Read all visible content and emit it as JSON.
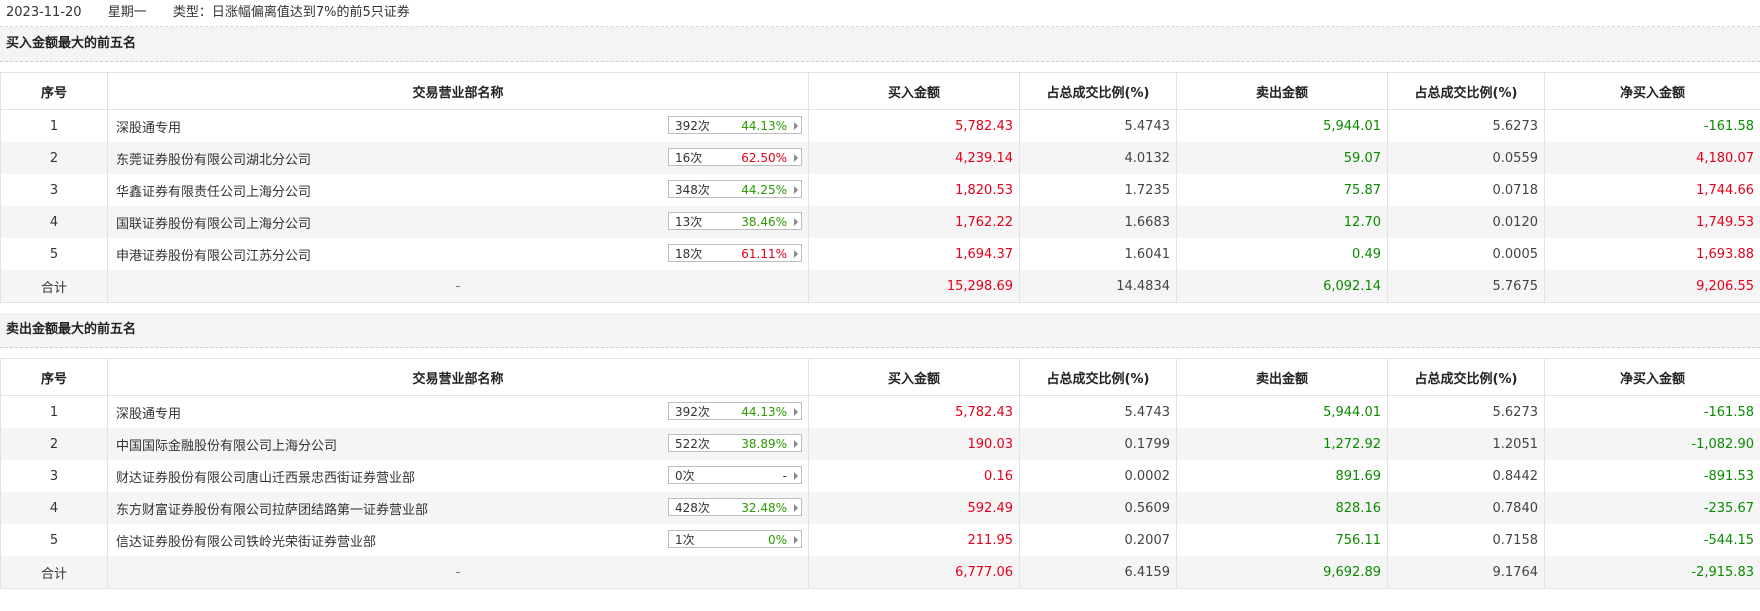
{
  "header": {
    "date": "2023-11-20",
    "weekday": "星期一",
    "type": "类型：日涨幅偏离值达到7%的前5只证券"
  },
  "columns": [
    "序号",
    "交易营业部名称",
    "买入金额",
    "占总成交比例(%)",
    "卖出金额",
    "占总成交比例(%)",
    "净买入金额"
  ],
  "buy_section": {
    "title": "买入金额最大的前五名",
    "rows": [
      {
        "idx": "1",
        "name": "深股通专用",
        "count": "392次",
        "pct": "44.13%",
        "buy": "5,782.43",
        "buy_ratio": "5.4743",
        "sell": "5,944.01",
        "sell_ratio": "5.6273",
        "net": "-161.58"
      },
      {
        "idx": "2",
        "name": "东莞证券股份有限公司湖北分公司",
        "count": "16次",
        "pct": "62.50%",
        "buy": "4,239.14",
        "buy_ratio": "4.0132",
        "sell": "59.07",
        "sell_ratio": "0.0559",
        "net": "4,180.07"
      },
      {
        "idx": "3",
        "name": "华鑫证券有限责任公司上海分公司",
        "count": "348次",
        "pct": "44.25%",
        "buy": "1,820.53",
        "buy_ratio": "1.7235",
        "sell": "75.87",
        "sell_ratio": "0.0718",
        "net": "1,744.66"
      },
      {
        "idx": "4",
        "name": "国联证券股份有限公司上海分公司",
        "count": "13次",
        "pct": "38.46%",
        "buy": "1,762.22",
        "buy_ratio": "1.6683",
        "sell": "12.70",
        "sell_ratio": "0.0120",
        "net": "1,749.53"
      },
      {
        "idx": "5",
        "name": "申港证券股份有限公司江苏分公司",
        "count": "18次",
        "pct": "61.11%",
        "buy": "1,694.37",
        "buy_ratio": "1.6041",
        "sell": "0.49",
        "sell_ratio": "0.0005",
        "net": "1,693.88"
      }
    ],
    "total": {
      "label": "合计",
      "name": "-",
      "buy": "15,298.69",
      "buy_ratio": "14.4834",
      "sell": "6,092.14",
      "sell_ratio": "5.7675",
      "net": "9,206.55"
    }
  },
  "sell_section": {
    "title": "卖出金额最大的前五名",
    "rows": [
      {
        "idx": "1",
        "name": "深股通专用",
        "count": "392次",
        "pct": "44.13%",
        "buy": "5,782.43",
        "buy_ratio": "5.4743",
        "sell": "5,944.01",
        "sell_ratio": "5.6273",
        "net": "-161.58"
      },
      {
        "idx": "2",
        "name": "中国国际金融股份有限公司上海分公司",
        "count": "522次",
        "pct": "38.89%",
        "buy": "190.03",
        "buy_ratio": "0.1799",
        "sell": "1,272.92",
        "sell_ratio": "1.2051",
        "net": "-1,082.90"
      },
      {
        "idx": "3",
        "name": "财达证券股份有限公司唐山迁西景忠西街证券营业部",
        "count": "0次",
        "pct": "-",
        "buy": "0.16",
        "buy_ratio": "0.0002",
        "sell": "891.69",
        "sell_ratio": "0.8442",
        "net": "-891.53"
      },
      {
        "idx": "4",
        "name": "东方财富证券股份有限公司拉萨团结路第一证券营业部",
        "count": "428次",
        "pct": "32.48%",
        "buy": "592.49",
        "buy_ratio": "0.5609",
        "sell": "828.16",
        "sell_ratio": "0.7840",
        "net": "-235.67"
      },
      {
        "idx": "5",
        "name": "信达证券股份有限公司铁岭光荣街证券营业部",
        "count": "1次",
        "pct": "0%",
        "buy": "211.95",
        "buy_ratio": "0.2007",
        "sell": "756.11",
        "sell_ratio": "0.7158",
        "net": "-544.15"
      }
    ],
    "total": {
      "label": "合计",
      "name": "-",
      "buy": "6,777.06",
      "buy_ratio": "6.4159",
      "sell": "9,692.89",
      "sell_ratio": "9.1764",
      "net": "-2,915.83"
    }
  },
  "colors": {
    "buy": "#e4001a",
    "sell": "#0b8a00",
    "pct_green": "#2a9a00",
    "pct_red": "#e4001a"
  },
  "pct_red_rows": {
    "buy": [
      1,
      4
    ],
    "sell": []
  }
}
